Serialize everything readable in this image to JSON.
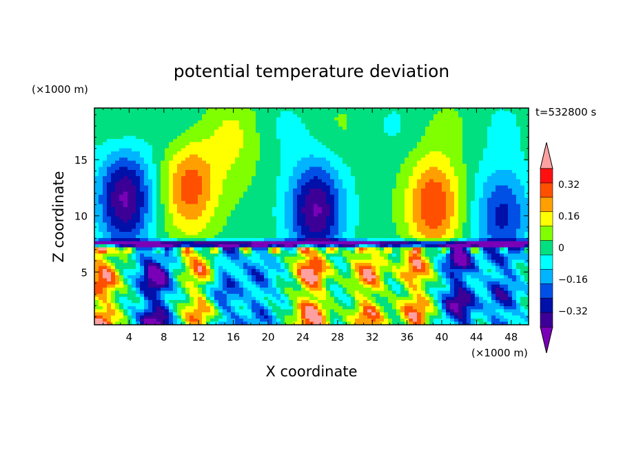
{
  "chart_data": {
    "type": "heatmap",
    "title": "potential temperature deviation",
    "xlabel": "X coordinate",
    "ylabel": "Z coordinate",
    "x_unit": "(×1000 m)",
    "y_unit": "(×1000 m)",
    "time_label": "t=532800 s",
    "xlim": [
      0,
      50
    ],
    "ylim": [
      0.3,
      19.6
    ],
    "x_ticks": [
      4,
      8,
      12,
      16,
      20,
      24,
      28,
      32,
      36,
      40,
      44,
      48
    ],
    "x_tick_labels": [
      "4",
      "8",
      "12",
      "16",
      "20",
      "24",
      "28",
      "32",
      "36",
      "40",
      "44",
      "48"
    ],
    "y_ticks": [
      5,
      10,
      15
    ],
    "y_tick_labels": [
      "5",
      "10",
      "15"
    ],
    "colorbar": {
      "levels": [
        -0.4,
        -0.32,
        -0.24,
        -0.16,
        -0.08,
        0,
        0.08,
        0.16,
        0.24,
        0.32,
        0.4
      ],
      "tick_values": [
        0.32,
        0.16,
        0,
        -0.16,
        -0.32
      ],
      "tick_labels": [
        "0.32",
        "0.16",
        "0",
        "−0.16",
        "−0.32"
      ],
      "colors": [
        "#7a00b8",
        "#3c0096",
        "#0010a8",
        "#0050e6",
        "#00b4ff",
        "#00ffff",
        "#00e080",
        "#80ff00",
        "#ffff00",
        "#ffa000",
        "#ff5000",
        "#ff1010",
        "#ffa0a0"
      ],
      "extend": "both"
    },
    "field_description": [
      {
        "name": "upper_vertical_anomaly",
        "regions": [
          {
            "x": 3.5,
            "z": 11.5,
            "amp": -0.45
          },
          {
            "x": 11,
            "z": 12.5,
            "amp": 0.32
          },
          {
            "x": 25.5,
            "z": 10.5,
            "amp": -0.45
          },
          {
            "x": 16,
            "z": 16,
            "amp": 0.1
          },
          {
            "x": 39,
            "z": 11,
            "amp": 0.36
          },
          {
            "x": 47,
            "z": 10,
            "amp": -0.3
          }
        ]
      },
      {
        "name": "inversion_layer_z",
        "value": 7.5
      },
      {
        "name": "low_level_columns",
        "regions": [
          {
            "x": 1,
            "amp": 0.45
          },
          {
            "x": 7,
            "amp": -0.5
          },
          {
            "x": 12,
            "amp": 0.35
          },
          {
            "x": 15,
            "amp": -0.25
          },
          {
            "x": 19,
            "amp": -0.2
          },
          {
            "x": 25,
            "amp": 0.5
          },
          {
            "x": 31.5,
            "amp": 0.4
          },
          {
            "x": 37,
            "amp": 0.4
          },
          {
            "x": 42,
            "amp": -0.45
          },
          {
            "x": 47,
            "amp": -0.3
          }
        ]
      }
    ]
  }
}
